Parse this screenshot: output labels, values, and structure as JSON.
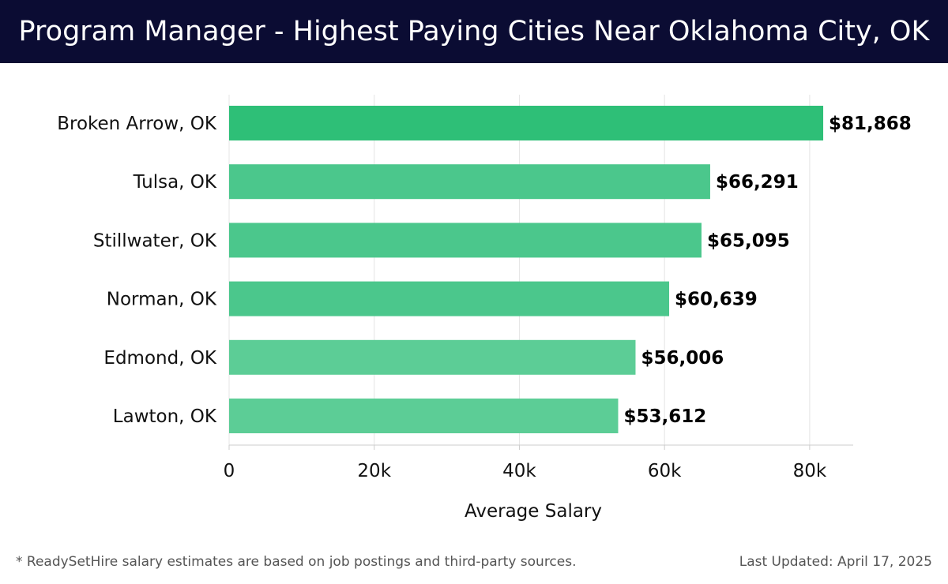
{
  "header": {
    "title": "Program Manager - Highest Paying Cities Near Oklahoma City, OK"
  },
  "chart_data": {
    "type": "bar",
    "orientation": "horizontal",
    "title": "Program Manager - Highest Paying Cities Near Oklahoma City, OK",
    "xlabel": "Average Salary",
    "ylabel": "",
    "categories": [
      "Broken Arrow, OK",
      "Tulsa, OK",
      "Stillwater, OK",
      "Norman, OK",
      "Edmond, OK",
      "Lawton, OK"
    ],
    "values": [
      81868,
      66291,
      65095,
      60639,
      56006,
      53612
    ],
    "value_labels": [
      "$81,868",
      "$66,291",
      "$65,095",
      "$60,639",
      "$56,006",
      "$53,612"
    ],
    "xlim": [
      0,
      86000
    ],
    "xticks": [
      0,
      20000,
      40000,
      60000,
      80000
    ],
    "xtick_labels": [
      "0",
      "20k",
      "40k",
      "60k",
      "80k"
    ],
    "grid": "vertical",
    "legend": "none",
    "colors": {
      "top_bar": "#2ebf77",
      "bar": "#4bc78c",
      "bar_light": "#5ccd96",
      "grid": "#e4e4e4",
      "axis": "#cccccc"
    }
  },
  "footer": {
    "note": "* ReadySetHire salary estimates are based on job postings and third-party sources.",
    "updated": "Last Updated: April 17, 2025"
  }
}
